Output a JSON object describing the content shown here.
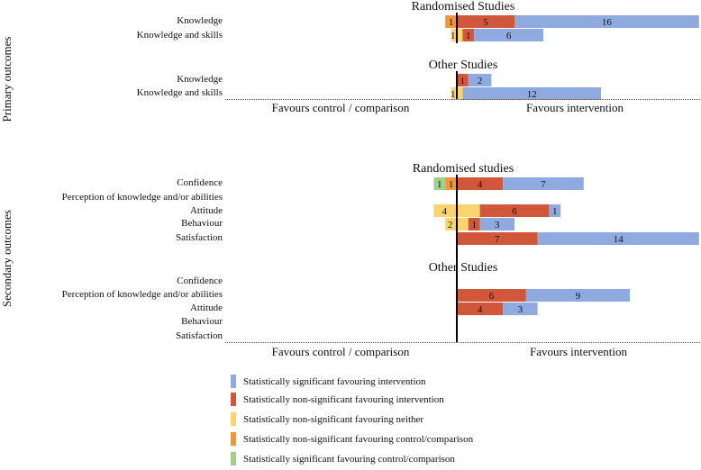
{
  "colors": {
    "sig_int": "#8eaadf",
    "nonsig_int": "#d0573a",
    "neither": "#fbd46d",
    "nonsig_ctrl": "#f3963b",
    "sig_ctrl": "#9fd18b"
  },
  "chart_data": {
    "type": "bar",
    "title": "",
    "xlabel_left": "Favours control / comparison",
    "xlabel_right": "Favours intervention",
    "unit": "number of studies",
    "legend": [
      {
        "key": "sig_int",
        "label": "Statistically significant favouring intervention"
      },
      {
        "key": "nonsig_int",
        "label": "Statistically non-significant favouring intervention"
      },
      {
        "key": "neither",
        "label": "Statistically non-significant favouring neither"
      },
      {
        "key": "nonsig_ctrl",
        "label": "Statistically non-significant favouring control/comparison"
      },
      {
        "key": "sig_ctrl",
        "label": "Statistically significant favouring control/comparison"
      }
    ],
    "panels": [
      {
        "id": "primary",
        "title": "Primary  outcomes",
        "groups": [
          {
            "title": "Randomised Studies",
            "rows": [
              {
                "label": "Knowledge",
                "sig_ctrl": 0,
                "nonsig_ctrl": 1,
                "neither": 0,
                "nonsig_int": 5,
                "sig_int": 16
              },
              {
                "label": "Knowledge and skills",
                "sig_ctrl": 0,
                "nonsig_ctrl": 0,
                "neither": 1,
                "nonsig_int": 1,
                "sig_int": 6
              }
            ]
          },
          {
            "title": "Other Studies",
            "rows": [
              {
                "label": "Knowledge",
                "sig_ctrl": 0,
                "nonsig_ctrl": 0,
                "neither": 0,
                "nonsig_int": 1,
                "sig_int": 2
              },
              {
                "label": "Knowledge and skills",
                "sig_ctrl": 0,
                "nonsig_ctrl": 0,
                "neither": 1,
                "nonsig_int": 0,
                "sig_int": 12
              }
            ]
          }
        ]
      },
      {
        "id": "secondary",
        "title": "Secondary  outcomes",
        "groups": [
          {
            "title": "Randomised studies",
            "rows": [
              {
                "label": "Confidence",
                "sig_ctrl": 1,
                "nonsig_ctrl": 1,
                "neither": 0,
                "nonsig_int": 4,
                "sig_int": 7
              },
              {
                "label": "Perception of knowledge and/or abilities",
                "sig_ctrl": 0,
                "nonsig_ctrl": 0,
                "neither": 0,
                "nonsig_int": 0,
                "sig_int": 0
              },
              {
                "label": "Attitude",
                "sig_ctrl": 0,
                "nonsig_ctrl": 0,
                "neither": 4,
                "nonsig_int": 6,
                "sig_int": 1
              },
              {
                "label": "Behaviour",
                "sig_ctrl": 0,
                "nonsig_ctrl": 0,
                "neither": 2,
                "nonsig_int": 1,
                "sig_int": 3
              },
              {
                "label": "Satisfaction",
                "sig_ctrl": 0,
                "nonsig_ctrl": 0,
                "neither": 0,
                "nonsig_int": 7,
                "sig_int": 14
              }
            ]
          },
          {
            "title": "Other Studies",
            "rows": [
              {
                "label": "Confidence",
                "sig_ctrl": 0,
                "nonsig_ctrl": 0,
                "neither": 0,
                "nonsig_int": 0,
                "sig_int": 0
              },
              {
                "label": "Perception of knowledge and/or abilities",
                "sig_ctrl": 0,
                "nonsig_ctrl": 0,
                "neither": 0,
                "nonsig_int": 6,
                "sig_int": 9
              },
              {
                "label": "Attitude",
                "sig_ctrl": 0,
                "nonsig_ctrl": 0,
                "neither": 0,
                "nonsig_int": 4,
                "sig_int": 3
              },
              {
                "label": "Behaviour",
                "sig_ctrl": 0,
                "nonsig_ctrl": 0,
                "neither": 0,
                "nonsig_int": 0,
                "sig_int": 0
              },
              {
                "label": "Satisfaction",
                "sig_ctrl": 0,
                "nonsig_ctrl": 0,
                "neither": 0,
                "nonsig_int": 0,
                "sig_int": 0
              }
            ]
          }
        ]
      }
    ]
  }
}
